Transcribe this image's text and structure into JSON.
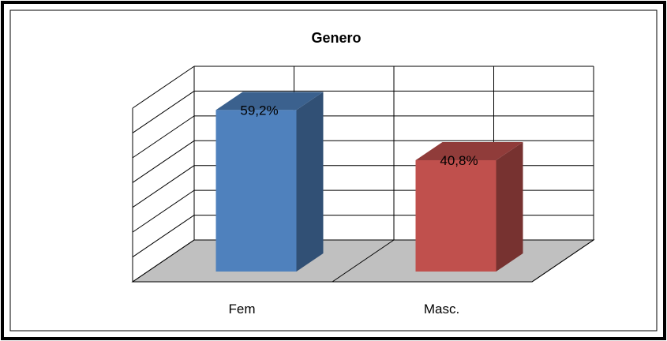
{
  "chart_data": {
    "type": "bar",
    "title": "Genero",
    "categories": [
      "Fem",
      "Masc."
    ],
    "values": [
      59.2,
      40.8
    ],
    "data_labels": [
      "59,2%",
      "40,8%"
    ],
    "colors": [
      "#4F81BD",
      "#C0504D"
    ],
    "ylim": [
      0,
      70
    ],
    "grid": true,
    "legend": "none",
    "style": "3d-column"
  }
}
